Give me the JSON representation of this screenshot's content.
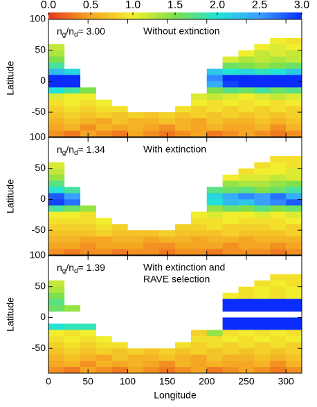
{
  "chart_data": {
    "type": "heatmap",
    "xlabel": "Longitude",
    "ylabel": "Latitude",
    "xlim": [
      0,
      320
    ],
    "ylim": [
      -90,
      100
    ],
    "xticks": [
      0,
      50,
      100,
      150,
      200,
      250,
      300
    ],
    "yticks": [
      -50,
      0,
      50,
      100
    ],
    "x": [
      10,
      30,
      50,
      70,
      90,
      110,
      130,
      150,
      170,
      190,
      210,
      230,
      250,
      270,
      290,
      310
    ],
    "y": [
      85,
      75,
      65,
      55,
      45,
      35,
      25,
      15,
      5,
      -5,
      -15,
      -25,
      -35,
      -45,
      -55,
      -65,
      -75,
      -85
    ],
    "colorbar": {
      "lim": [
        0,
        3
      ],
      "ticks": [
        {
          "value": 0,
          "label": "0.0"
        },
        0.5,
        {
          "value": 1,
          "label": "1.0"
        },
        1.5,
        {
          "value": 2,
          "label": "2.0"
        },
        2.5,
        {
          "value": 3,
          "label": "3.0"
        }
      ],
      "colorscale": [
        [
          0,
          "#e8381c"
        ],
        [
          0.5,
          "#f5a623"
        ],
        [
          1,
          "#f2ee2e"
        ],
        [
          1.5,
          "#7ee04a"
        ],
        [
          2,
          "#22e3d6"
        ],
        [
          2.5,
          "#3aa0ff"
        ],
        [
          3,
          "#0a2cff"
        ]
      ]
    },
    "panels": [
      {
        "ratio_text": [
          "n",
          "g",
          "/n",
          "d",
          "= 3.00"
        ],
        "subtitle": [
          "Without extinction"
        ],
        "values": [
          [
            null,
            null,
            null,
            null,
            null,
            null,
            null,
            null,
            null,
            null,
            null,
            null,
            null,
            null,
            null,
            null
          ],
          [
            null,
            null,
            null,
            null,
            null,
            null,
            null,
            null,
            null,
            null,
            null,
            null,
            null,
            null,
            null,
            null
          ],
          [
            null,
            null,
            null,
            null,
            null,
            null,
            null,
            null,
            null,
            null,
            null,
            null,
            null,
            null,
            1.0,
            0.9
          ],
          [
            1.2,
            null,
            null,
            null,
            null,
            null,
            null,
            null,
            null,
            null,
            null,
            null,
            null,
            1.0,
            1.1,
            1.0
          ],
          [
            1.3,
            null,
            null,
            null,
            null,
            null,
            null,
            null,
            null,
            null,
            null,
            null,
            1.0,
            1.2,
            1.1,
            1.2
          ],
          [
            1.5,
            null,
            null,
            null,
            null,
            null,
            null,
            null,
            null,
            null,
            null,
            1.1,
            1.3,
            1.2,
            1.3,
            1.2
          ],
          [
            1.8,
            null,
            null,
            null,
            null,
            null,
            null,
            null,
            null,
            null,
            null,
            1.6,
            1.5,
            1.4,
            1.5,
            1.6
          ],
          [
            2.3,
            2.1,
            null,
            null,
            null,
            null,
            null,
            null,
            null,
            null,
            2.2,
            2.0,
            2.1,
            1.9,
            2.0,
            2.2
          ],
          [
            3.0,
            3.0,
            null,
            null,
            null,
            null,
            null,
            null,
            null,
            null,
            2.6,
            3.0,
            3.0,
            3.0,
            3.0,
            3.0
          ],
          [
            3.0,
            3.0,
            null,
            null,
            null,
            null,
            null,
            null,
            null,
            null,
            2.4,
            2.9,
            3.0,
            3.0,
            3.0,
            3.0
          ],
          [
            2.0,
            1.8,
            1.5,
            null,
            null,
            null,
            null,
            null,
            null,
            null,
            1.5,
            1.7,
            1.6,
            1.8,
            1.6,
            1.7
          ],
          [
            1.1,
            1.0,
            1.0,
            null,
            null,
            null,
            null,
            null,
            null,
            1.1,
            1.2,
            1.1,
            1.0,
            1.1,
            1.2,
            1.1
          ],
          [
            0.9,
            1.0,
            0.9,
            1.0,
            null,
            null,
            null,
            null,
            null,
            1.0,
            0.9,
            1.0,
            0.9,
            1.0,
            0.9,
            1.0
          ],
          [
            0.8,
            0.9,
            0.8,
            0.9,
            0.9,
            null,
            null,
            null,
            0.9,
            0.8,
            0.9,
            0.8,
            0.9,
            0.8,
            0.9,
            0.8
          ],
          [
            0.7,
            0.8,
            0.7,
            0.8,
            0.7,
            0.8,
            0.7,
            0.8,
            0.7,
            0.8,
            0.7,
            0.8,
            0.7,
            0.8,
            0.7,
            0.8
          ],
          [
            0.6,
            0.7,
            0.6,
            0.5,
            0.7,
            0.6,
            0.6,
            0.7,
            0.6,
            0.5,
            0.7,
            0.6,
            0.6,
            0.7,
            0.6,
            0.7
          ],
          [
            0.5,
            0.6,
            0.4,
            0.6,
            0.5,
            0.6,
            0.5,
            0.4,
            0.6,
            0.5,
            0.6,
            0.5,
            0.5,
            0.6,
            0.4,
            0.6
          ],
          [
            0.4,
            0.3,
            0.5,
            0.4,
            0.3,
            0.5,
            0.4,
            0.3,
            0.4,
            0.5,
            0.3,
            0.4,
            0.5,
            0.4,
            0.3,
            0.4
          ]
        ]
      },
      {
        "ratio_text": [
          "n",
          "g",
          "/n",
          "d",
          "= 1.34"
        ],
        "subtitle": [
          "With extinction"
        ],
        "values": [
          [
            null,
            null,
            null,
            null,
            null,
            null,
            null,
            null,
            null,
            null,
            null,
            null,
            null,
            null,
            null,
            null
          ],
          [
            null,
            null,
            null,
            null,
            null,
            null,
            null,
            null,
            null,
            null,
            null,
            null,
            null,
            null,
            null,
            null
          ],
          [
            null,
            null,
            null,
            null,
            null,
            null,
            null,
            null,
            null,
            null,
            null,
            null,
            null,
            null,
            0.9,
            0.9
          ],
          [
            1.1,
            null,
            null,
            null,
            null,
            null,
            null,
            null,
            null,
            null,
            null,
            null,
            null,
            0.9,
            1.0,
            0.9
          ],
          [
            1.2,
            null,
            null,
            null,
            null,
            null,
            null,
            null,
            null,
            null,
            null,
            null,
            0.9,
            1.0,
            1.0,
            1.1
          ],
          [
            1.4,
            null,
            null,
            null,
            null,
            null,
            null,
            null,
            null,
            null,
            null,
            1.0,
            1.1,
            1.1,
            1.2,
            1.1
          ],
          [
            1.7,
            null,
            null,
            null,
            null,
            null,
            null,
            null,
            null,
            null,
            null,
            1.4,
            1.3,
            1.3,
            1.4,
            1.5
          ],
          [
            2.0,
            1.8,
            null,
            null,
            null,
            null,
            null,
            null,
            null,
            null,
            1.7,
            1.6,
            1.7,
            1.5,
            1.6,
            1.8
          ],
          [
            2.8,
            2.5,
            null,
            null,
            null,
            null,
            null,
            null,
            null,
            null,
            2.1,
            2.4,
            2.6,
            2.5,
            2.7,
            2.4
          ],
          [
            2.9,
            2.7,
            null,
            null,
            null,
            null,
            null,
            null,
            null,
            null,
            2.0,
            2.3,
            2.2,
            2.5,
            2.6,
            2.8
          ],
          [
            1.8,
            1.6,
            1.4,
            null,
            null,
            null,
            null,
            null,
            null,
            null,
            1.4,
            1.6,
            1.5,
            1.7,
            1.5,
            1.6
          ],
          [
            1.0,
            1.0,
            0.9,
            null,
            null,
            null,
            null,
            null,
            null,
            1.0,
            1.1,
            1.0,
            1.0,
            1.1,
            1.0,
            1.1
          ],
          [
            0.9,
            0.9,
            0.9,
            1.0,
            null,
            null,
            null,
            null,
            null,
            0.9,
            0.9,
            1.0,
            0.9,
            0.9,
            0.9,
            1.0
          ],
          [
            0.8,
            0.8,
            0.8,
            0.9,
            0.8,
            null,
            null,
            null,
            0.8,
            0.8,
            0.9,
            0.8,
            0.8,
            0.8,
            0.9,
            0.8
          ],
          [
            0.7,
            0.7,
            0.7,
            0.8,
            0.7,
            0.7,
            0.7,
            0.8,
            0.7,
            0.7,
            0.7,
            0.8,
            0.7,
            0.7,
            0.7,
            0.8
          ],
          [
            0.6,
            0.6,
            0.5,
            0.5,
            0.6,
            0.6,
            0.5,
            0.6,
            0.6,
            0.5,
            0.6,
            0.6,
            0.5,
            0.6,
            0.6,
            0.6
          ],
          [
            0.5,
            0.5,
            0.4,
            0.5,
            0.5,
            0.5,
            0.4,
            0.4,
            0.5,
            0.5,
            0.5,
            0.4,
            0.5,
            0.5,
            0.4,
            0.5
          ],
          [
            0.4,
            0.3,
            0.4,
            0.4,
            0.3,
            0.4,
            0.4,
            0.3,
            0.4,
            0.4,
            0.3,
            0.4,
            0.4,
            0.4,
            0.3,
            0.4
          ]
        ]
      },
      {
        "ratio_text": [
          "n",
          "g",
          "/n",
          "d",
          "= 1.39"
        ],
        "subtitle": [
          "With extinction and",
          "RAVE selection"
        ],
        "values": [
          [
            null,
            null,
            null,
            null,
            null,
            null,
            null,
            null,
            null,
            null,
            null,
            null,
            null,
            null,
            null,
            null
          ],
          [
            null,
            null,
            null,
            null,
            null,
            null,
            null,
            null,
            null,
            null,
            null,
            null,
            null,
            null,
            null,
            null
          ],
          [
            null,
            null,
            null,
            null,
            null,
            null,
            null,
            null,
            null,
            null,
            null,
            null,
            null,
            null,
            0.9,
            0.9
          ],
          [
            1.2,
            null,
            null,
            null,
            null,
            null,
            null,
            null,
            null,
            null,
            null,
            null,
            null,
            0.9,
            1.0,
            0.9
          ],
          [
            1.3,
            null,
            null,
            null,
            null,
            null,
            null,
            null,
            null,
            null,
            null,
            null,
            0.9,
            1.0,
            0.9,
            1.0
          ],
          [
            1.5,
            null,
            null,
            null,
            null,
            null,
            null,
            null,
            null,
            null,
            null,
            1.0,
            0.9,
            1.0,
            0.9,
            1.0
          ],
          [
            1.7,
            null,
            null,
            null,
            null,
            null,
            null,
            null,
            null,
            null,
            null,
            3.0,
            3.0,
            3.0,
            3.0,
            3.0
          ],
          [
            1.6,
            1.4,
            null,
            null,
            null,
            null,
            null,
            null,
            null,
            null,
            null,
            3.0,
            3.0,
            3.0,
            3.0,
            3.0
          ],
          [
            null,
            null,
            null,
            null,
            null,
            null,
            null,
            null,
            null,
            null,
            null,
            null,
            null,
            null,
            null,
            null
          ],
          [
            null,
            null,
            null,
            null,
            null,
            null,
            null,
            null,
            null,
            null,
            null,
            3.0,
            3.0,
            3.0,
            3.0,
            3.0
          ],
          [
            2.0,
            1.9,
            1.9,
            null,
            null,
            null,
            null,
            null,
            null,
            null,
            null,
            3.0,
            3.0,
            3.0,
            3.0,
            3.0
          ],
          [
            1.0,
            0.9,
            1.0,
            null,
            null,
            null,
            null,
            null,
            null,
            0.8,
            1.4,
            0.9,
            1.0,
            0.9,
            1.0,
            0.9
          ],
          [
            0.9,
            1.0,
            0.9,
            1.0,
            null,
            null,
            null,
            null,
            null,
            0.9,
            0.9,
            1.0,
            0.9,
            1.0,
            0.9,
            1.0
          ],
          [
            0.8,
            0.9,
            0.8,
            0.9,
            0.9,
            null,
            null,
            null,
            0.9,
            0.8,
            0.9,
            0.8,
            0.9,
            0.8,
            0.9,
            0.8
          ],
          [
            0.7,
            0.8,
            0.7,
            0.8,
            0.7,
            0.8,
            0.7,
            0.8,
            0.7,
            0.8,
            0.7,
            0.8,
            0.7,
            0.8,
            0.7,
            0.8
          ],
          [
            0.6,
            0.7,
            0.6,
            0.5,
            0.7,
            0.6,
            0.6,
            0.7,
            0.6,
            0.5,
            0.7,
            0.6,
            0.6,
            0.7,
            0.6,
            0.7
          ],
          [
            0.5,
            0.6,
            0.4,
            0.6,
            0.5,
            0.6,
            0.5,
            0.4,
            0.6,
            0.5,
            0.6,
            0.5,
            0.5,
            0.6,
            0.4,
            0.6
          ],
          [
            0.4,
            0.3,
            0.5,
            0.4,
            0.3,
            0.5,
            0.4,
            0.3,
            0.4,
            0.5,
            0.3,
            0.4,
            0.5,
            0.4,
            0.3,
            0.4
          ]
        ]
      }
    ]
  }
}
